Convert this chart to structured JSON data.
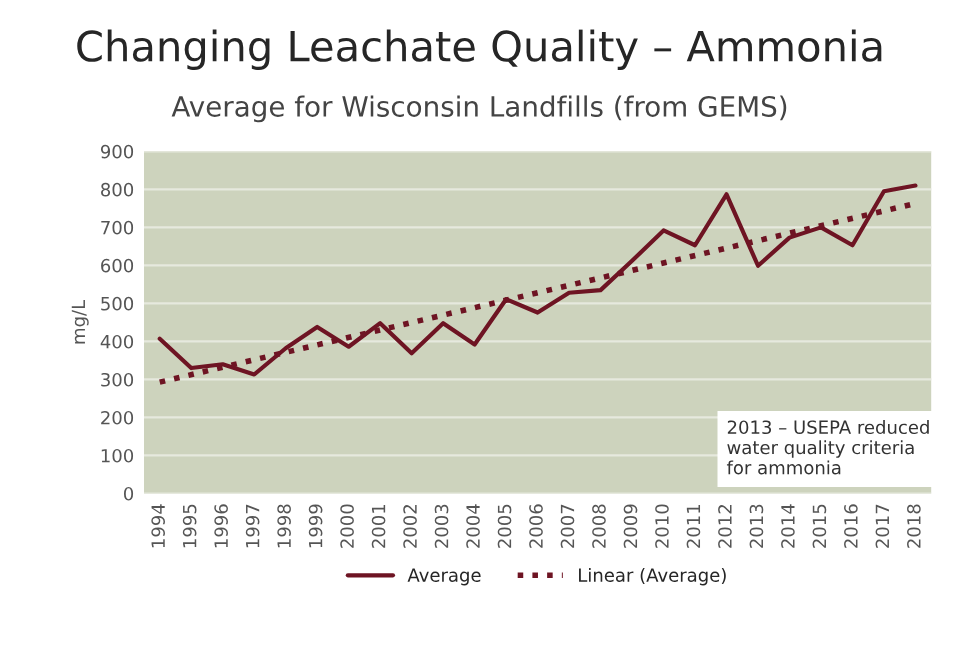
{
  "chart_data": {
    "type": "line",
    "title": "Changing Leachate Quality – Ammonia",
    "subtitle": "Average for Wisconsin Landfills (from GEMS)",
    "ylabel": "mg/L",
    "xlim": [
      1993.5,
      2018.5
    ],
    "xticks": [
      1994,
      1995,
      1996,
      1997,
      1998,
      1999,
      2000,
      2001,
      2002,
      2003,
      2004,
      2005,
      2006,
      2007,
      2008,
      2009,
      2010,
      2011,
      2012,
      2013,
      2014,
      2015,
      2016,
      2017,
      2018
    ],
    "ylim": [
      0,
      900
    ],
    "yticks": [
      0,
      100,
      200,
      300,
      400,
      500,
      600,
      700,
      800,
      900
    ],
    "grid": "y",
    "legend": "bottom",
    "series": [
      {
        "name": "Average",
        "color": "#6e1423",
        "line_style": "solid",
        "x": [
          1994,
          1995,
          1996,
          1997,
          1998,
          1999,
          2000,
          2001,
          2002,
          2003,
          2004,
          2005,
          2006,
          2007,
          2008,
          2009,
          2010,
          2011,
          2012,
          2013,
          2014,
          2015,
          2016,
          2017,
          2018
        ],
        "values": [
          407,
          330,
          340,
          313,
          382,
          438,
          386,
          448,
          369,
          448,
          392,
          511,
          476,
          528,
          535,
          612,
          692,
          653,
          787,
          599,
          673,
          700,
          653,
          795,
          810
        ]
      },
      {
        "name": "Linear (Average)",
        "color": "#6e1423",
        "line_style": "dotted",
        "x": [
          1994,
          2018
        ],
        "values": [
          293,
          763
        ]
      }
    ],
    "annotations": [
      "2013 – USEPA reduced\nwater quality criteria\nfor ammonia"
    ]
  }
}
